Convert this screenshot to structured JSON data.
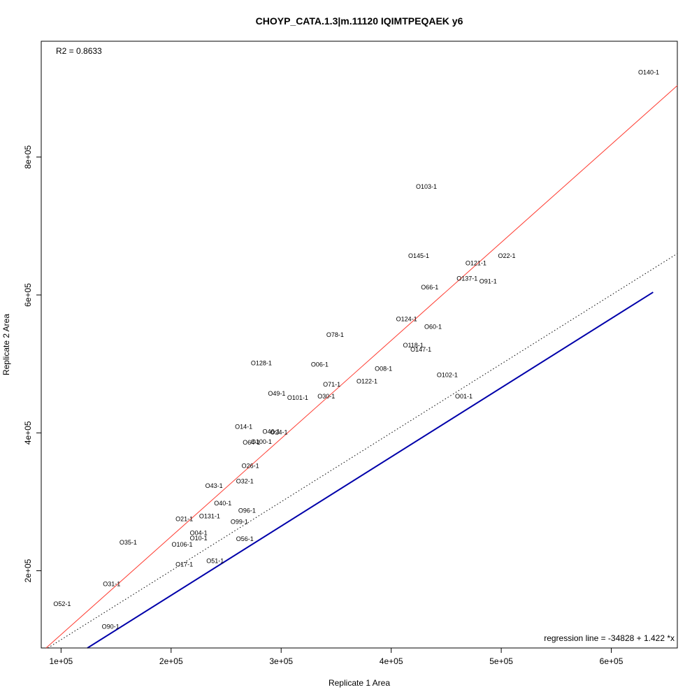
{
  "chart_data": {
    "type": "scatter",
    "title": "CHOYP_CATA.1.3|m.11120 IQIMTPEQAEK y6",
    "xlabel": "Replicate 1 Area",
    "ylabel": "Replicate 2 Area",
    "xlim": [
      82000,
      660000
    ],
    "ylim": [
      88000,
      968000
    ],
    "x_ticks": [
      {
        "value": 100000,
        "label": "1e+05"
      },
      {
        "value": 200000,
        "label": "2e+05"
      },
      {
        "value": 300000,
        "label": "3e+05"
      },
      {
        "value": 400000,
        "label": "4e+05"
      },
      {
        "value": 500000,
        "label": "5e+05"
      },
      {
        "value": 600000,
        "label": "6e+05"
      }
    ],
    "y_ticks": [
      {
        "value": 200000,
        "label": "2e+05"
      },
      {
        "value": 400000,
        "label": "4e+05"
      },
      {
        "value": 600000,
        "label": "6e+05"
      },
      {
        "value": 800000,
        "label": "8e+05"
      }
    ],
    "r2_text": "R2 = 0.8633",
    "regression_text": "regression line = -34828 + 1.422 *x",
    "grid": false,
    "points": [
      {
        "label": "O140-1",
        "x": 634000,
        "y": 923000
      },
      {
        "label": "O103-1",
        "x": 432000,
        "y": 757000
      },
      {
        "label": "O145-1",
        "x": 425000,
        "y": 657000
      },
      {
        "label": "O22-1",
        "x": 505000,
        "y": 657000
      },
      {
        "label": "O121-1",
        "x": 477000,
        "y": 646000
      },
      {
        "label": "O137-1",
        "x": 469000,
        "y": 624000
      },
      {
        "label": "O91-1",
        "x": 488000,
        "y": 620000
      },
      {
        "label": "O66-1",
        "x": 435000,
        "y": 611000
      },
      {
        "label": "O124-1",
        "x": 414000,
        "y": 565000
      },
      {
        "label": "O60-1",
        "x": 438000,
        "y": 554000
      },
      {
        "label": "O78-1",
        "x": 349000,
        "y": 542000
      },
      {
        "label": "O118-1",
        "x": 420000,
        "y": 527000
      },
      {
        "label": "O147-1",
        "x": 427000,
        "y": 521000
      },
      {
        "label": "O128-1",
        "x": 282000,
        "y": 501000
      },
      {
        "label": "O06-1",
        "x": 335000,
        "y": 499000
      },
      {
        "label": "O08-1",
        "x": 393000,
        "y": 493000
      },
      {
        "label": "O102-1",
        "x": 451000,
        "y": 484000
      },
      {
        "label": "O122-1",
        "x": 378000,
        "y": 475000
      },
      {
        "label": "O71-1",
        "x": 346000,
        "y": 470000
      },
      {
        "label": "O49-1",
        "x": 296000,
        "y": 457000
      },
      {
        "label": "O30-1",
        "x": 341000,
        "y": 453000
      },
      {
        "label": "O101-1",
        "x": 315000,
        "y": 451000
      },
      {
        "label": "O01-1",
        "x": 466000,
        "y": 453000
      },
      {
        "label": "O14-1",
        "x": 266000,
        "y": 409000
      },
      {
        "label": "O46-1",
        "x": 291000,
        "y": 402000
      },
      {
        "label": "O24-1",
        "x": 298000,
        "y": 401000
      },
      {
        "label": "O64-1",
        "x": 273000,
        "y": 386000
      },
      {
        "label": "O100-1",
        "x": 282000,
        "y": 387000
      },
      {
        "label": "O26-1",
        "x": 272000,
        "y": 352000
      },
      {
        "label": "O32-1",
        "x": 267000,
        "y": 330000
      },
      {
        "label": "O43-1",
        "x": 239000,
        "y": 323000
      },
      {
        "label": "O40-1",
        "x": 247000,
        "y": 298000
      },
      {
        "label": "O96-1",
        "x": 269000,
        "y": 287000
      },
      {
        "label": "O131-1",
        "x": 235000,
        "y": 279000
      },
      {
        "label": "O21-1",
        "x": 212000,
        "y": 275000
      },
      {
        "label": "O99-1",
        "x": 262000,
        "y": 271000
      },
      {
        "label": "O04-1",
        "x": 225000,
        "y": 255000
      },
      {
        "label": "O10-1",
        "x": 225000,
        "y": 247000
      },
      {
        "label": "O56-1",
        "x": 267000,
        "y": 246000
      },
      {
        "label": "O35-1",
        "x": 161000,
        "y": 241000
      },
      {
        "label": "O106-1",
        "x": 210000,
        "y": 238000
      },
      {
        "label": "O17-1",
        "x": 212000,
        "y": 209000
      },
      {
        "label": "O51-1",
        "x": 240000,
        "y": 214000
      },
      {
        "label": "O31-1",
        "x": 146000,
        "y": 181000
      },
      {
        "label": "O52-1",
        "x": 101000,
        "y": 152000
      },
      {
        "label": "O90-1",
        "x": 145000,
        "y": 119000
      }
    ],
    "lines": [
      {
        "name": "regression",
        "color": "#ff3b30",
        "style": "solid",
        "intercept": -34828,
        "slope": 1.422
      },
      {
        "name": "identity",
        "color": "#000000",
        "style": "dotted",
        "intercept": 0,
        "slope": 1
      },
      {
        "name": "blue",
        "color": "#0000aa",
        "style": "solid",
        "from": [
          124000,
          88000
        ],
        "to": [
          638000,
          604000
        ]
      }
    ]
  }
}
